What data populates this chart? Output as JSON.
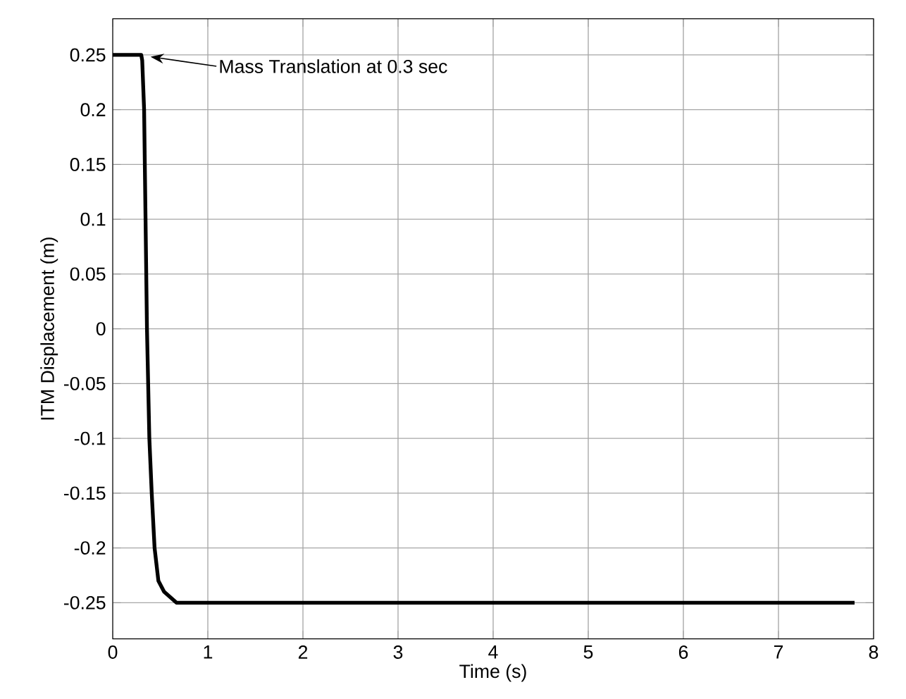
{
  "chart_data": {
    "type": "line",
    "xlabel": "Time (s)",
    "ylabel": "ITM Displacement (m)",
    "x": [
      0,
      0.3,
      0.31,
      0.33,
      0.36,
      0.385,
      0.41,
      0.44,
      0.48,
      0.54,
      0.67,
      7.8
    ],
    "series": [
      {
        "color": "#000000",
        "values": [
          0.25,
          0.25,
          0.245,
          0.2,
          0,
          -0.1,
          -0.15,
          -0.2,
          -0.23,
          -0.24,
          -0.25,
          -0.25
        ]
      }
    ],
    "xlim": [
      0,
      8
    ],
    "ylim": [
      -0.283,
      0.283
    ],
    "xticks": [
      0,
      1,
      2,
      3,
      4,
      5,
      6,
      7,
      8
    ],
    "yticks": [
      0.25,
      0.2,
      0.15,
      0.1,
      0.05,
      0,
      -0.05,
      -0.1,
      -0.15,
      -0.2,
      -0.25
    ],
    "grid": true,
    "line_style": "solid",
    "marker": "none",
    "annotations": [
      "Mass Translation at 0.3 sec"
    ]
  }
}
